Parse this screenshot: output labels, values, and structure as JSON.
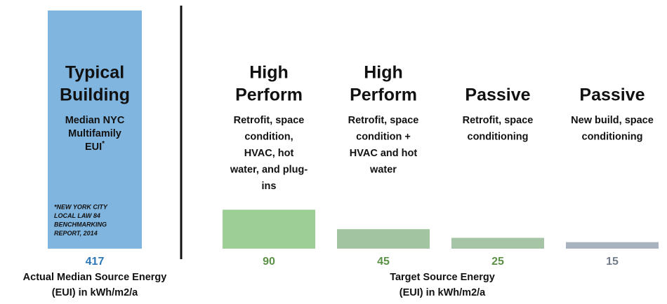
{
  "chart_data": [
    {
      "type": "bar",
      "labels": [
        {
          "heading": [
            "Typical",
            "Building"
          ],
          "detail": [
            "Median NYC",
            "Multifamily",
            "EUI"
          ],
          "detail_sup": "*",
          "footnote": [
            "*NEW YORK CITY",
            "LOCAL LAW 84",
            "BENCHMARKING",
            "REPORT, 2014"
          ]
        }
      ],
      "values": [
        417
      ],
      "colors": [
        "#80b5df"
      ],
      "value_colors": [
        "#2e78b7"
      ],
      "ylim": [
        0,
        417
      ],
      "x_label": [
        "Actual Median Source Energy",
        "(EUI) in kWh/m2/a"
      ]
    },
    {
      "type": "bar",
      "labels": [
        {
          "heading": [
            "High",
            "Perform"
          ],
          "detail": [
            "Retrofit, space",
            "condition,",
            "HVAC, hot",
            "water, and plug-",
            "ins"
          ]
        },
        {
          "heading": [
            "High",
            "Perform"
          ],
          "detail": [
            "Retrofit, space",
            "condition +",
            "HVAC and hot",
            "water"
          ]
        },
        {
          "heading": [
            "Passive"
          ],
          "detail": [
            "Retrofit, space",
            "conditioning"
          ]
        },
        {
          "heading": [
            "Passive"
          ],
          "detail": [
            "New build, space",
            "conditioning"
          ]
        }
      ],
      "values": [
        90,
        45,
        25,
        15
      ],
      "colors": [
        "#9dce95",
        "#a2c4a0",
        "#a6c5a6",
        "#a9b2bf"
      ],
      "value_colors": [
        "#5b9147",
        "#5b9147",
        "#5b9147",
        "#737d89"
      ],
      "ylim": [
        0,
        550
      ],
      "x_label": [
        "Target Source Energy",
        "(EUI) in kWh/m2/a"
      ]
    }
  ]
}
